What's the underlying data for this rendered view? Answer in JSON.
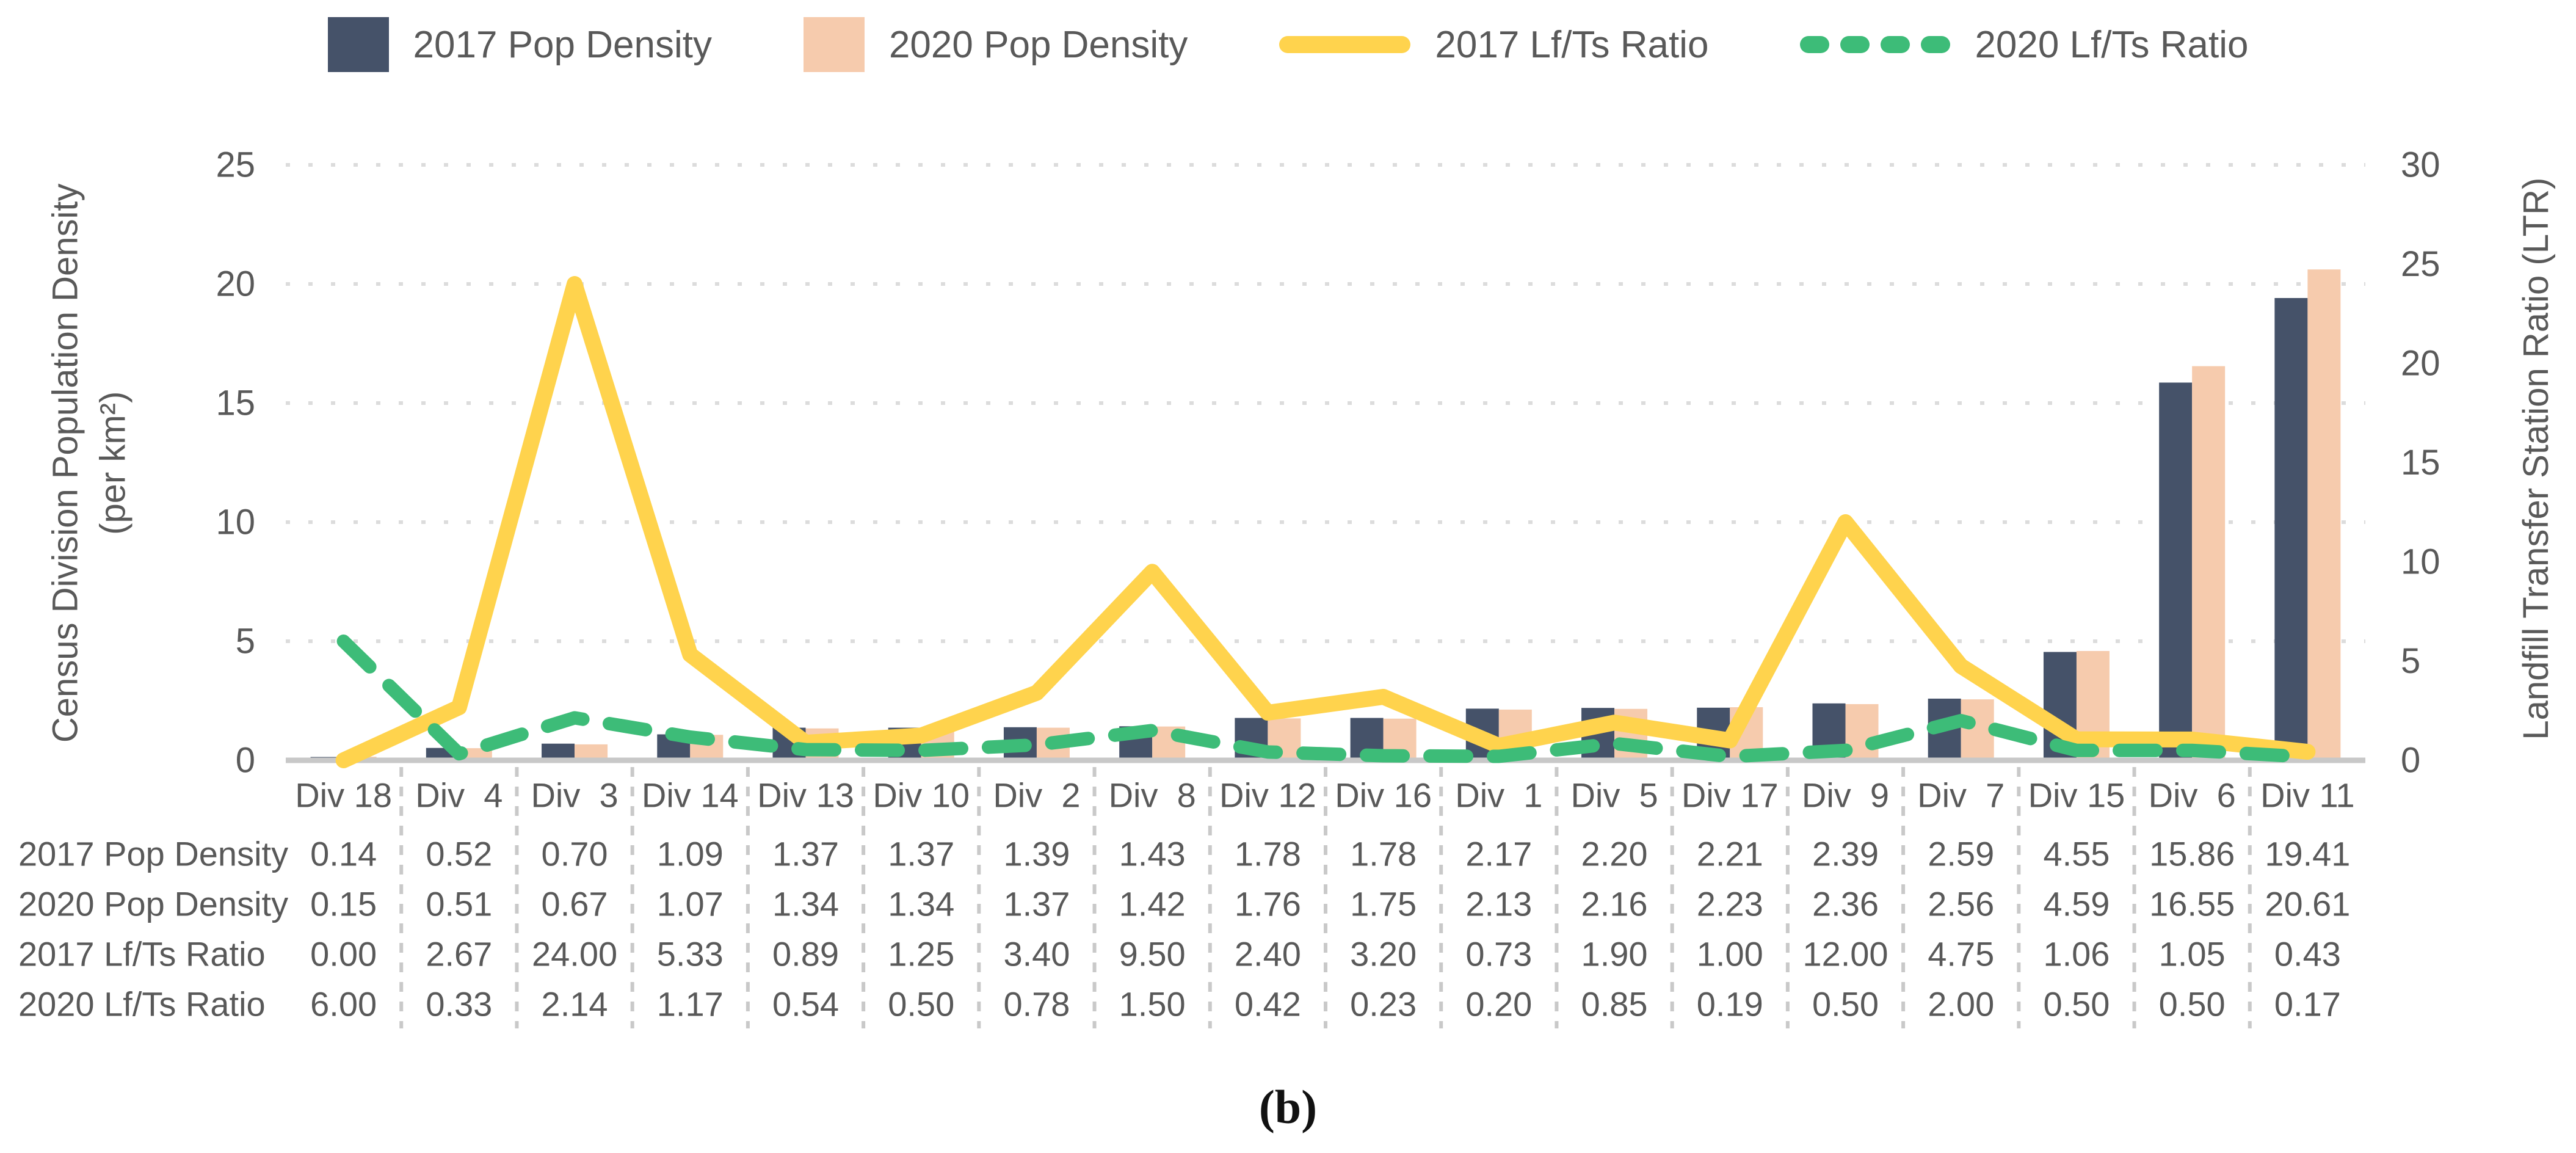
{
  "legend": {
    "items": [
      {
        "label": "2017 Pop Density",
        "swatch": "bar",
        "color": "#455269"
      },
      {
        "label": "2020 Pop Density",
        "swatch": "bar",
        "color": "#F6CBAD"
      },
      {
        "label": "2017 Lf/Ts Ratio",
        "swatch": "line",
        "color": "#FFD34D"
      },
      {
        "label": "2020 Lf/Ts Ratio",
        "swatch": "dashed-line",
        "color": "#3DBC78"
      }
    ]
  },
  "axes": {
    "left_title_line1": "Census Division Population Density",
    "left_title_line2": "(per km²)",
    "right_title": "Landfill Transfer Station Ratio (LTR)",
    "left_ticks": [
      0,
      5,
      10,
      15,
      20,
      25
    ],
    "right_ticks": [
      0,
      5,
      10,
      15,
      20,
      25,
      30
    ]
  },
  "chart_data": {
    "type": "bar+line",
    "title": "",
    "xlabel": "",
    "ylabel_left": "Census Division Population Density (per km²)",
    "ylabel_right": "Landfill Transfer Station Ratio (LTR)",
    "ylim_left": [
      0,
      25
    ],
    "ylim_right": [
      0,
      30
    ],
    "grid": "dotted horizontal gridlines at left-axis ticks",
    "legend_position": "top-center",
    "categories": [
      "Div 18",
      "Div  4",
      "Div  3",
      "Div 14",
      "Div 13",
      "Div 10",
      "Div  2",
      "Div  8",
      "Div 12",
      "Div 16",
      "Div  1",
      "Div  5",
      "Div 17",
      "Div  9",
      "Div  7",
      "Div 15",
      "Div  6",
      "Div 11"
    ],
    "series": [
      {
        "name": "2017 Pop Density",
        "type": "bar",
        "axis": "left",
        "color": "#455269",
        "dash": false,
        "values": [
          0.14,
          0.52,
          0.7,
          1.09,
          1.37,
          1.37,
          1.39,
          1.43,
          1.78,
          1.78,
          2.17,
          2.2,
          2.21,
          2.39,
          2.59,
          4.55,
          15.86,
          19.41
        ]
      },
      {
        "name": "2020 Pop Density",
        "type": "bar",
        "axis": "left",
        "color": "#F6CBAD",
        "dash": false,
        "values": [
          0.15,
          0.51,
          0.67,
          1.07,
          1.34,
          1.34,
          1.37,
          1.42,
          1.76,
          1.75,
          2.13,
          2.16,
          2.23,
          2.36,
          2.56,
          4.59,
          16.55,
          20.61
        ]
      },
      {
        "name": "2017 Lf/Ts Ratio",
        "type": "line",
        "axis": "right",
        "color": "#FFD34D",
        "dash": false,
        "values": [
          0.0,
          2.67,
          24.0,
          5.33,
          0.89,
          1.25,
          3.4,
          9.5,
          2.4,
          3.2,
          0.73,
          1.9,
          1.0,
          12.0,
          4.75,
          1.06,
          1.05,
          0.43
        ]
      },
      {
        "name": "2020 Lf/Ts Ratio",
        "type": "line",
        "axis": "right",
        "color": "#3DBC78",
        "dash": true,
        "values": [
          6.0,
          0.33,
          2.14,
          1.17,
          0.54,
          0.5,
          0.78,
          1.5,
          0.42,
          0.23,
          0.2,
          0.85,
          0.19,
          0.5,
          2.0,
          0.5,
          0.5,
          0.17
        ]
      }
    ]
  },
  "table": {
    "rows": [
      {
        "label": "2017 Pop Density",
        "values": [
          "0.14",
          "0.52",
          "0.70",
          "1.09",
          "1.37",
          "1.37",
          "1.39",
          "1.43",
          "1.78",
          "1.78",
          "2.17",
          "2.20",
          "2.21",
          "2.39",
          "2.59",
          "4.55",
          "15.86",
          "19.41"
        ]
      },
      {
        "label": "2020 Pop Density",
        "values": [
          "0.15",
          "0.51",
          "0.67",
          "1.07",
          "1.34",
          "1.34",
          "1.37",
          "1.42",
          "1.76",
          "1.75",
          "2.13",
          "2.16",
          "2.23",
          "2.36",
          "2.56",
          "4.59",
          "16.55",
          "20.61"
        ]
      },
      {
        "label": "2017 Lf/Ts Ratio",
        "values": [
          "0.00",
          "2.67",
          "24.00",
          "5.33",
          "0.89",
          "1.25",
          "3.40",
          "9.50",
          "2.40",
          "3.20",
          "0.73",
          "1.90",
          "1.00",
          "12.00",
          "4.75",
          "1.06",
          "1.05",
          "0.43"
        ]
      },
      {
        "label": "2020 Lf/Ts Ratio",
        "values": [
          "6.00",
          "0.33",
          "2.14",
          "1.17",
          "0.54",
          "0.50",
          "0.78",
          "1.50",
          "0.42",
          "0.23",
          "0.20",
          "0.85",
          "0.19",
          "0.50",
          "2.00",
          "0.50",
          "0.50",
          "0.17"
        ]
      }
    ]
  },
  "caption": "(b)",
  "colors": {
    "text": "#595959",
    "gridline": "#DCDCDC",
    "baseline": "#C8C8C8",
    "separator": "#C9C9C9"
  }
}
